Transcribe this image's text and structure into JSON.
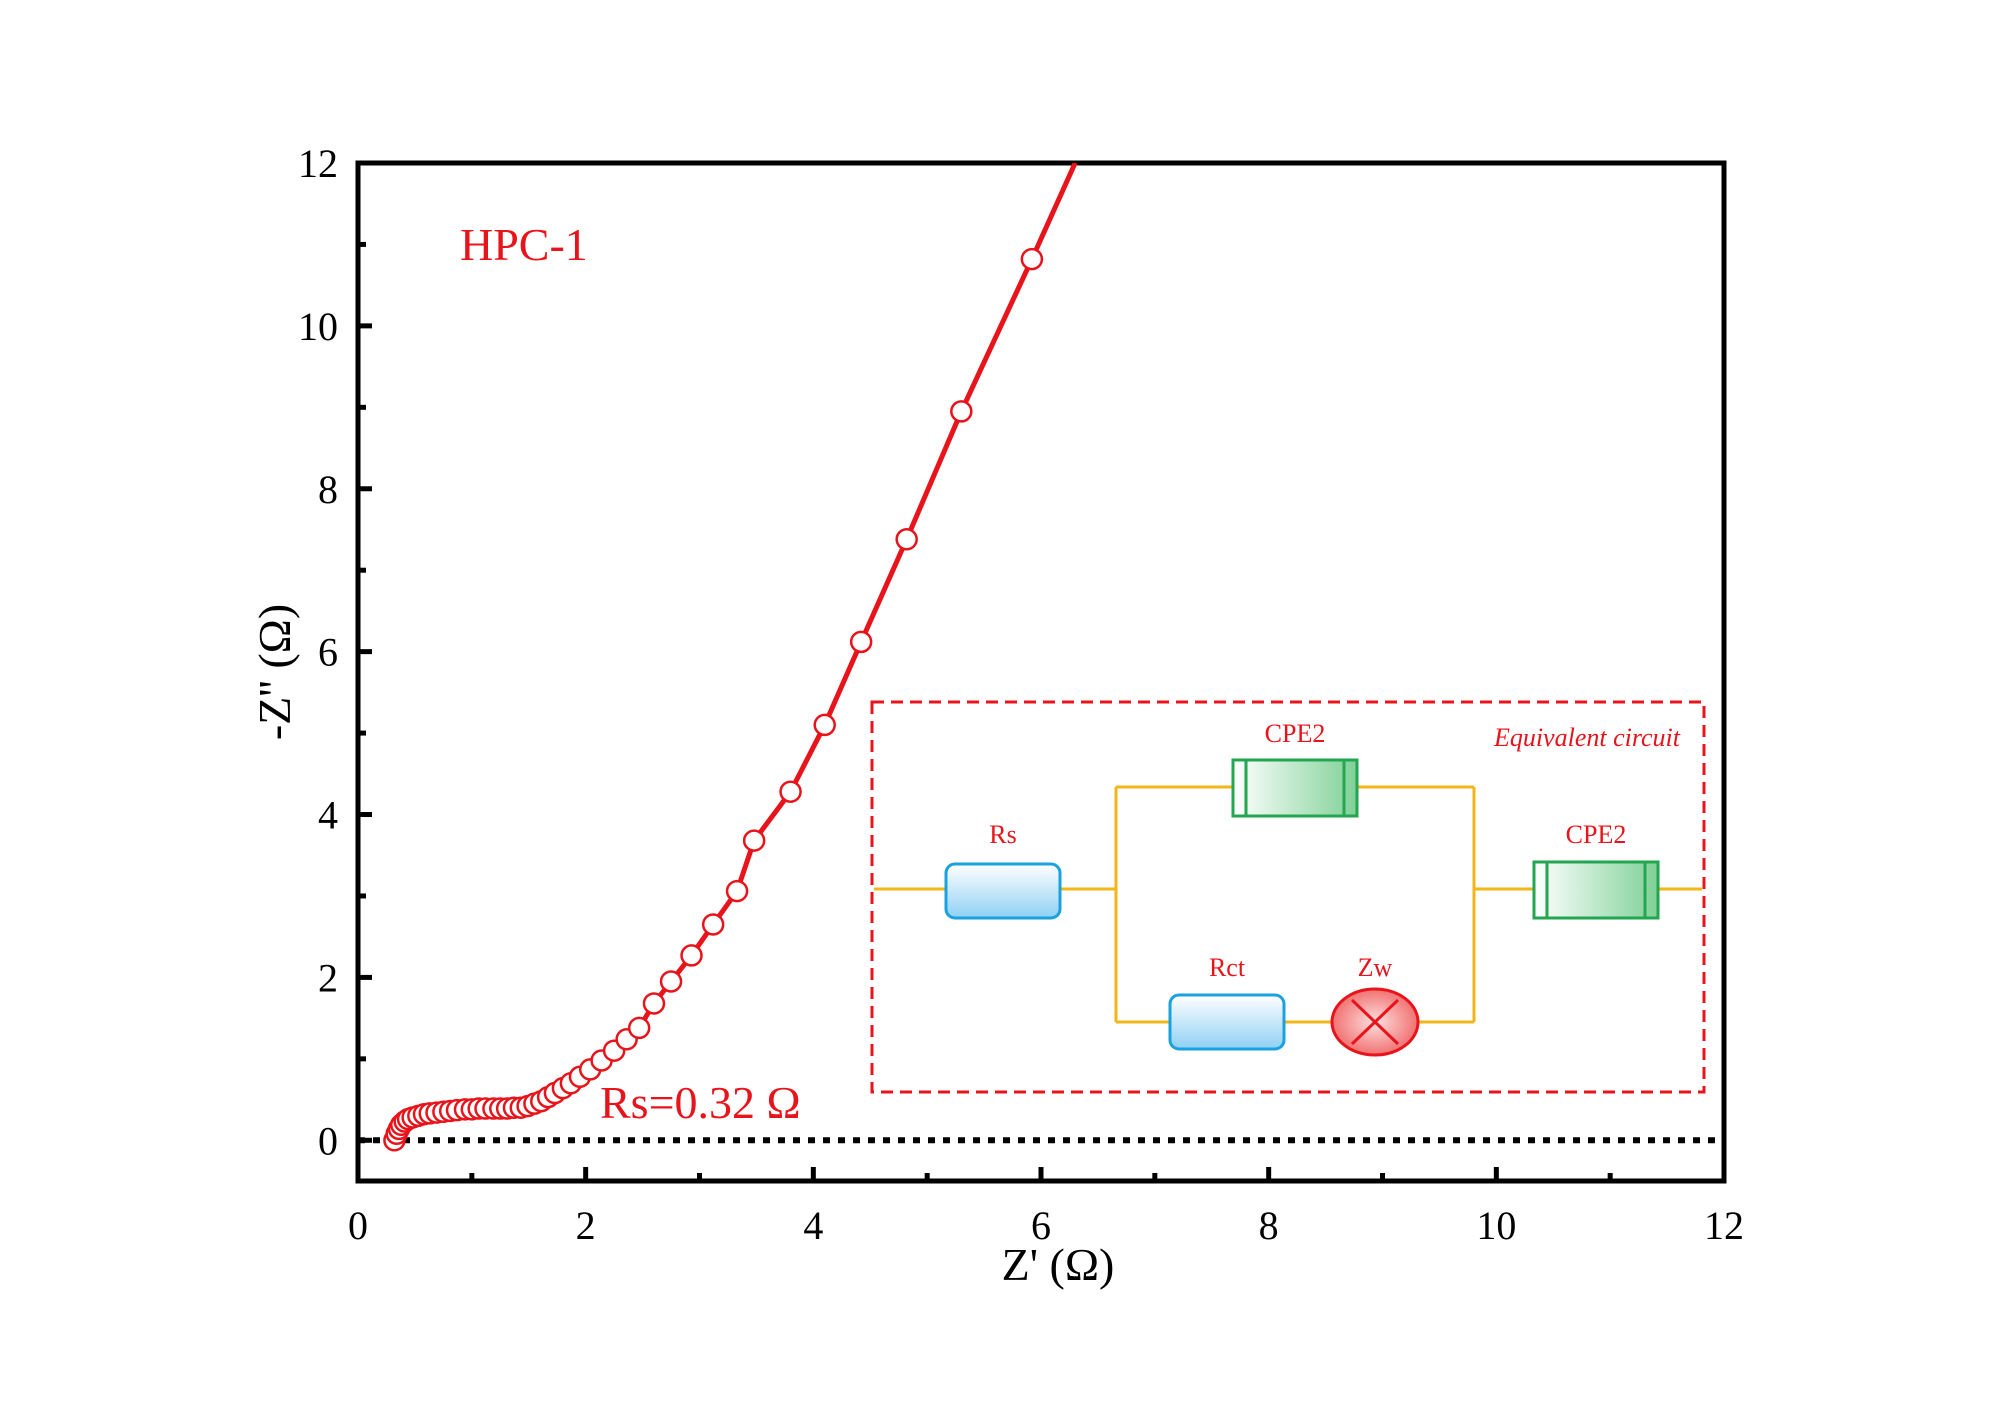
{
  "chart_data": {
    "type": "scatter",
    "title": "",
    "xlabel": "Z' (Ω)",
    "ylabel": "-Z'' (Ω)",
    "xlim": [
      0,
      12
    ],
    "ylim": [
      -0.5,
      12
    ],
    "xticks": [
      0,
      2,
      4,
      6,
      8,
      10,
      12
    ],
    "yticks": [
      0,
      2,
      4,
      6,
      8,
      10,
      12
    ],
    "grid": false,
    "reference_line_y": 0,
    "series": [
      {
        "name": "HPC-1",
        "color": "#e8141b",
        "marker": "open-circle",
        "x": [
          0.32,
          0.34,
          0.36,
          0.38,
          0.41,
          0.44,
          0.48,
          0.53,
          0.58,
          0.63,
          0.69,
          0.75,
          0.81,
          0.87,
          0.94,
          1.0,
          1.06,
          1.12,
          1.19,
          1.25,
          1.31,
          1.37,
          1.43,
          1.49,
          1.55,
          1.61,
          1.67,
          1.73,
          1.8,
          1.87,
          1.95,
          2.04,
          2.14,
          2.25,
          2.36,
          2.47,
          2.6,
          2.75,
          2.93,
          3.12,
          3.33,
          3.48,
          3.8,
          4.1,
          4.42,
          4.82,
          5.3,
          5.92
        ],
        "y": [
          0.0,
          0.08,
          0.14,
          0.19,
          0.23,
          0.26,
          0.28,
          0.3,
          0.32,
          0.33,
          0.34,
          0.35,
          0.36,
          0.37,
          0.38,
          0.38,
          0.39,
          0.39,
          0.39,
          0.39,
          0.39,
          0.4,
          0.4,
          0.42,
          0.45,
          0.48,
          0.53,
          0.58,
          0.64,
          0.7,
          0.78,
          0.87,
          0.98,
          1.1,
          1.24,
          1.38,
          1.68,
          1.95,
          2.27,
          2.65,
          3.06,
          3.68,
          4.28,
          5.1,
          6.12,
          7.38,
          8.95,
          10.82
        ],
        "line_extends_to": [
          6.3,
          12.0
        ]
      }
    ],
    "annotations": {
      "series_label": "HPC-1",
      "rs_label": "Rs=0.32 Ω"
    },
    "inset": {
      "title": "Equivalent circuit",
      "components": {
        "rs": "Rs",
        "cpe_parallel": "CPE2",
        "rct": "Rct",
        "zw": "Zw",
        "cpe_series": "CPE2"
      },
      "colors": {
        "border": "#e8141b",
        "wire": "#f2b619",
        "resistor_fill": "#bfe3f8",
        "resistor_stroke": "#1aa2df",
        "cpe_fill": "#9fdcae",
        "cpe_stroke": "#22a650",
        "warburg_fill": "#f27d7d",
        "warburg_stroke": "#e8141b"
      }
    }
  }
}
